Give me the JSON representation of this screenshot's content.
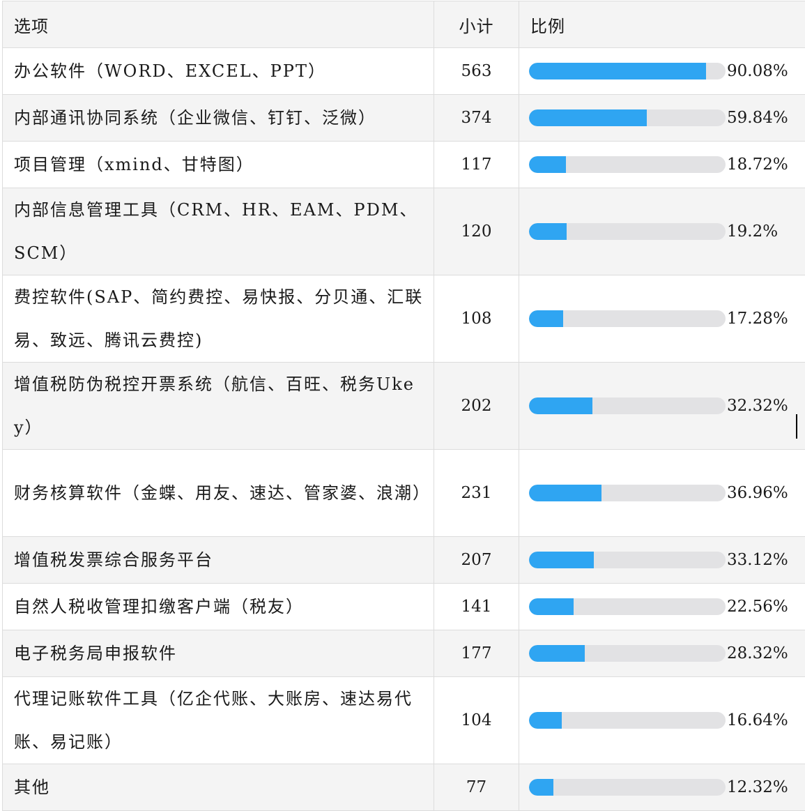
{
  "table": {
    "headers": {
      "option": "选项",
      "count": "小计",
      "ratio": "比例"
    },
    "rows": [
      {
        "option": "办公软件（WORD、EXCEL、PPT）",
        "count": "563",
        "percent": "90.08%",
        "fraction": 0.9008
      },
      {
        "option": "内部通讯协同系统（企业微信、钉钉、泛微）",
        "count": "374",
        "percent": "59.84%",
        "fraction": 0.5984
      },
      {
        "option": "项目管理（xmind、甘特图）",
        "count": "117",
        "percent": "18.72%",
        "fraction": 0.1872
      },
      {
        "option": "内部信息管理工具（CRM、HR、EAM、PDM、SCM）",
        "count": "120",
        "percent": "19.2%",
        "fraction": 0.192
      },
      {
        "option": "费控软件(SAP、简约费控、易快报、分贝通、汇联易、致远、腾讯云费控)",
        "count": "108",
        "percent": "17.28%",
        "fraction": 0.1728
      },
      {
        "option": "增值税防伪税控开票系统（航信、百旺、税务Ukey）",
        "count": "202",
        "percent": "32.32%",
        "fraction": 0.3232
      },
      {
        "option": "财务核算软件（金蝶、用友、速达、管家婆、浪潮）",
        "count": "231",
        "percent": "36.96%",
        "fraction": 0.3696
      },
      {
        "option": "增值税发票综合服务平台",
        "count": "207",
        "percent": "33.12%",
        "fraction": 0.3312
      },
      {
        "option": "自然人税收管理扣缴客户端（税友）",
        "count": "141",
        "percent": "22.56%",
        "fraction": 0.2256
      },
      {
        "option": "电子税务局申报软件",
        "count": "177",
        "percent": "28.32%",
        "fraction": 0.2832
      },
      {
        "option": "代理记账软件工具（亿企代账、大账房、速达易代账、易记账）",
        "count": "104",
        "percent": "16.64%",
        "fraction": 0.1664
      },
      {
        "option": "其他",
        "count": "77",
        "percent": "12.32%",
        "fraction": 0.1232
      }
    ]
  },
  "colors": {
    "bar_fill": "#2fa5f2",
    "bar_track": "#e2e2e4",
    "zebra_row": "#f4f4f4",
    "grid_line": "#dcdcdc"
  }
}
